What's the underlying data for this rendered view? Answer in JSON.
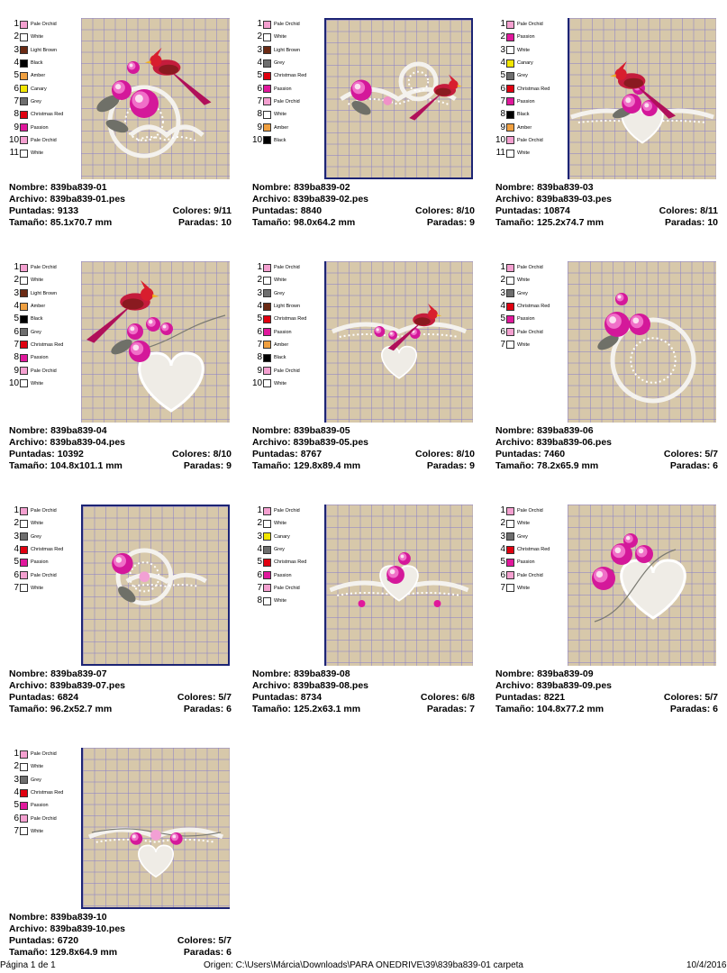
{
  "colors": {
    "Pale Orchid": "#f4a0d0",
    "White": "#ffffff",
    "Light Brown": "#6b2a14",
    "Black": "#000000",
    "Amber": "#f0a040",
    "Canary": "#f2e600",
    "Grey": "#6e6e6e",
    "Christmas Red": "#e00010",
    "Passion": "#e0189c"
  },
  "labels": {
    "nombre": "Nombre:",
    "archivo": "Archivo:",
    "puntadas": "Puntadas:",
    "colores": "Colores:",
    "tamano": "Tamaño:",
    "paradas": "Paradas:"
  },
  "designs": [
    {
      "nombre": "839ba839-01",
      "archivo": "839ba839-01.pes",
      "puntadas": "9133",
      "colores": "9/11",
      "tamano": "85.1x70.7 mm",
      "paradas": "10",
      "thread_list": [
        "Pale Orchid",
        "White",
        "Light Brown",
        "Black",
        "Amber",
        "Canary",
        "Grey",
        "Christmas Red",
        "Passion",
        "Pale Orchid",
        "White"
      ]
    },
    {
      "nombre": "839ba839-02",
      "archivo": "839ba839-02.pes",
      "puntadas": "8840",
      "colores": "8/10",
      "tamano": "98.0x64.2 mm",
      "paradas": "9",
      "thread_list": [
        "Pale Orchid",
        "White",
        "Light Brown",
        "Grey",
        "Christmas Red",
        "Passion",
        "Pale Orchid",
        "White",
        "Amber",
        "Black"
      ]
    },
    {
      "nombre": "839ba839-03",
      "archivo": "839ba839-03.pes",
      "puntadas": "10874",
      "colores": "8/11",
      "tamano": "125.2x74.7 mm",
      "paradas": "10",
      "thread_list": [
        "Pale Orchid",
        "Passion",
        "White",
        "Canary",
        "Grey",
        "Christmas Red",
        "Passion",
        "Black",
        "Amber",
        "Pale Orchid",
        "White"
      ]
    },
    {
      "nombre": "839ba839-04",
      "archivo": "839ba839-04.pes",
      "puntadas": "10392",
      "colores": "8/10",
      "tamano": "104.8x101.1 mm",
      "paradas": "9",
      "thread_list": [
        "Pale Orchid",
        "White",
        "Light Brown",
        "Amber",
        "Black",
        "Grey",
        "Christmas Red",
        "Passion",
        "Pale Orchid",
        "White"
      ]
    },
    {
      "nombre": "839ba839-05",
      "archivo": "839ba839-05.pes",
      "puntadas": "8767",
      "colores": "8/10",
      "tamano": "129.8x89.4 mm",
      "paradas": "9",
      "thread_list": [
        "Pale Orchid",
        "White",
        "Grey",
        "Light Brown",
        "Christmas Red",
        "Passion",
        "Amber",
        "Black",
        "Pale Orchid",
        "White"
      ]
    },
    {
      "nombre": "839ba839-06",
      "archivo": "839ba839-06.pes",
      "puntadas": "7460",
      "colores": "5/7",
      "tamano": "78.2x65.9 mm",
      "paradas": "6",
      "thread_list": [
        "Pale Orchid",
        "White",
        "Grey",
        "Christmas Red",
        "Passion",
        "Pale Orchid",
        "White"
      ]
    },
    {
      "nombre": "839ba839-07",
      "archivo": "839ba839-07.pes",
      "puntadas": "6824",
      "colores": "5/7",
      "tamano": "96.2x52.7 mm",
      "paradas": "6",
      "thread_list": [
        "Pale Orchid",
        "White",
        "Grey",
        "Christmas Red",
        "Passion",
        "Pale Orchid",
        "White"
      ]
    },
    {
      "nombre": "839ba839-08",
      "archivo": "839ba839-08.pes",
      "puntadas": "8734",
      "colores": "6/8",
      "tamano": "125.2x63.1 mm",
      "paradas": "7",
      "thread_list": [
        "Pale Orchid",
        "White",
        "Canary",
        "Grey",
        "Christmas Red",
        "Passion",
        "Pale Orchid",
        "White"
      ]
    },
    {
      "nombre": "839ba839-09",
      "archivo": "839ba839-09.pes",
      "puntadas": "8221",
      "colores": "5/7",
      "tamano": "104.8x77.2 mm",
      "paradas": "6",
      "thread_list": [
        "Pale Orchid",
        "White",
        "Grey",
        "Christmas Red",
        "Passion",
        "Pale Orchid",
        "White"
      ]
    },
    {
      "nombre": "839ba839-10",
      "archivo": "839ba839-10.pes",
      "puntadas": "6720",
      "colores": "5/7",
      "tamano": "129.8x64.9 mm",
      "paradas": "6",
      "thread_list": [
        "Pale Orchid",
        "White",
        "Grey",
        "Christmas Red",
        "Passion",
        "Pale Orchid",
        "White"
      ]
    }
  ],
  "footer": {
    "page": "Página 1 de 1",
    "origin": "Origen: C:\\Users\\Márcia\\Downloads\\PARA ONEDRIVE\\39\\839ba839-01 carpeta",
    "date": "10/4/2016"
  }
}
